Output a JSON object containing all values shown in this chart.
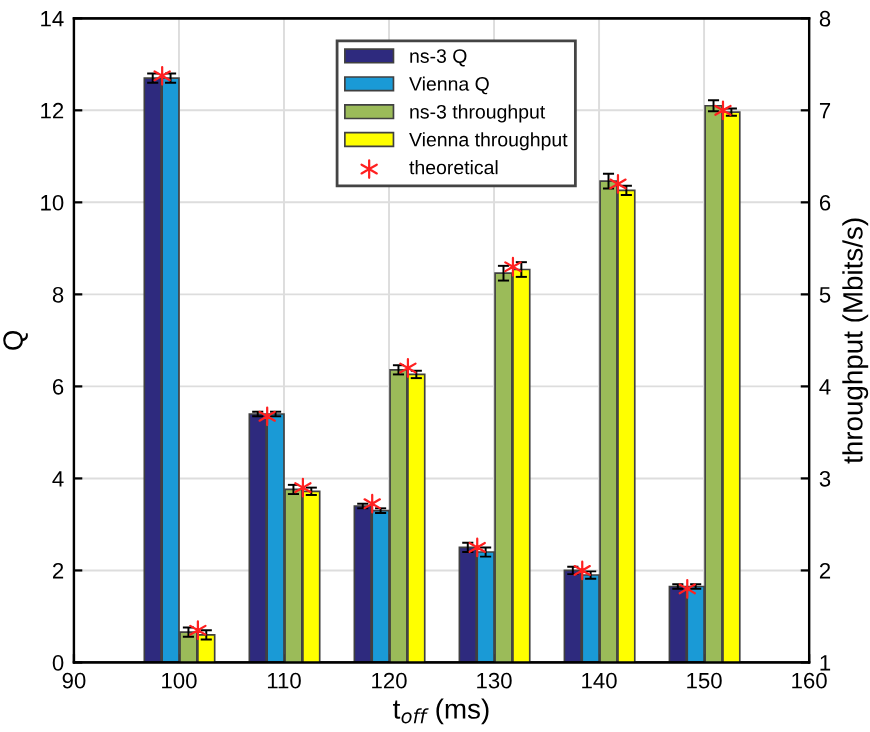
{
  "chart_data": {
    "type": "bar",
    "xlabel": "t$_{off}$ (ms)",
    "ylabel": "Q",
    "y2label": "throughput (Mbits/s)",
    "xlim": [
      90,
      160
    ],
    "xticks": [
      90,
      100,
      110,
      120,
      130,
      140,
      150,
      160
    ],
    "ylim": [
      0,
      14
    ],
    "yticks": [
      0,
      2,
      4,
      6,
      8,
      10,
      12,
      14
    ],
    "y2lim": [
      1,
      8
    ],
    "y2ticks": [
      1,
      2,
      3,
      4,
      5,
      6,
      7,
      8
    ],
    "grid": true,
    "legend": "top",
    "series": [
      {
        "name": "ns-3 Q",
        "color": "#2e2a7e",
        "x": [
          97.5,
          107.5,
          117.5,
          127.5,
          137.5,
          147.5
        ],
        "values": [
          12.7,
          5.4,
          3.4,
          2.5,
          2.0,
          1.65
        ],
        "errors": [
          0.1,
          0.05,
          0.05,
          0.1,
          0.08,
          0.05
        ]
      },
      {
        "name": "Vienna Q",
        "color": "#1a9ad6",
        "x": [
          99.2,
          109.2,
          119.2,
          129.2,
          139.2,
          149.2
        ],
        "values": [
          12.7,
          5.4,
          3.3,
          2.4,
          1.9,
          1.65
        ],
        "errors": [
          0.1,
          0.05,
          0.05,
          0.1,
          0.08,
          0.05
        ]
      },
      {
        "name": "ns-3 throughput",
        "color": "#9bbb59",
        "axis": "y2",
        "x": [
          100.9,
          110.9,
          120.9,
          130.9,
          140.9,
          150.9
        ],
        "values": [
          1.33,
          2.88,
          4.18,
          5.23,
          6.23,
          7.05
        ],
        "errors": [
          0.05,
          0.05,
          0.05,
          0.08,
          0.08,
          0.06
        ]
      },
      {
        "name": "Vienna throughput",
        "color": "#ffff00",
        "axis": "y2",
        "x": [
          102.6,
          112.6,
          122.6,
          132.6,
          142.6,
          152.6
        ],
        "values": [
          1.3,
          2.86,
          4.13,
          5.27,
          6.13,
          6.98
        ],
        "errors": [
          0.05,
          0.04,
          0.04,
          0.08,
          0.05,
          0.04
        ]
      },
      {
        "name": "theoretical",
        "type": "scatter",
        "marker": "cross",
        "color": "#ff2020",
        "x": [
          98.4,
          108.4,
          118.4,
          128.4,
          138.4,
          148.4
        ],
        "values": [
          12.75,
          5.35,
          3.45,
          2.5,
          2.0,
          1.6
        ]
      },
      {
        "type": "scatter",
        "marker": "cross",
        "color": "#ff2020",
        "axis": "y2",
        "x": [
          101.8,
          111.8,
          121.8,
          131.8,
          141.8,
          151.8
        ],
        "values": [
          1.35,
          2.9,
          4.2,
          5.3,
          6.2,
          7.0
        ]
      }
    ]
  }
}
